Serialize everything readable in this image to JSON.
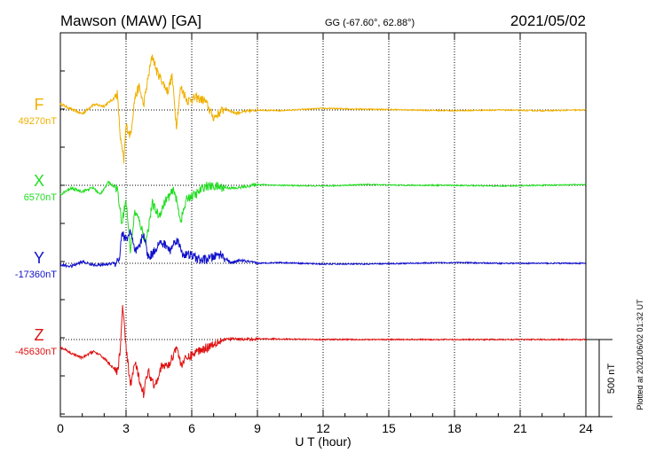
{
  "header": {
    "station": "Mawson (MAW)  [GA]",
    "coords": "GG (-67.60°,  62.88°)",
    "date": "2021/05/02"
  },
  "footer": {
    "plotted": "Plotted at 2021/06/02 01:32 UT"
  },
  "scale_bar": {
    "label": "500 nT",
    "value_nT": 500
  },
  "colors": {
    "F": "#f0b000",
    "X": "#22dd22",
    "Y": "#1010cc",
    "Z": "#e01010",
    "axis": "#000000",
    "grid": "#000000"
  },
  "chart_data": {
    "type": "line",
    "xlabel": "U T (hour)",
    "xlim": [
      0,
      24
    ],
    "xticks": [
      "0",
      "3",
      "6",
      "9",
      "12",
      "15",
      "18",
      "21",
      "24"
    ],
    "grid": "dotted vertical at every 3 h",
    "series": [
      {
        "name": "F",
        "base_label": "49270nT",
        "base_nT": 49270,
        "points": [
          [
            0,
            40
          ],
          [
            0.5,
            5
          ],
          [
            1,
            -25
          ],
          [
            1.5,
            35
          ],
          [
            2,
            25
          ],
          [
            2.4,
            70
          ],
          [
            2.6,
            105
          ],
          [
            2.75,
            -200
          ],
          [
            2.9,
            -330
          ],
          [
            3.0,
            -100
          ],
          [
            3.2,
            -170
          ],
          [
            3.4,
            80
          ],
          [
            3.6,
            150
          ],
          [
            3.8,
            30
          ],
          [
            4.0,
            200
          ],
          [
            4.2,
            355
          ],
          [
            4.4,
            250
          ],
          [
            4.6,
            200
          ],
          [
            4.9,
            120
          ],
          [
            5.1,
            220
          ],
          [
            5.3,
            -100
          ],
          [
            5.5,
            150
          ],
          [
            5.8,
            60
          ],
          [
            6.2,
            80
          ],
          [
            6.6,
            60
          ],
          [
            7.0,
            -50
          ],
          [
            7.5,
            10
          ],
          [
            8.0,
            -20
          ],
          [
            9,
            0
          ],
          [
            10,
            -5
          ],
          [
            12,
            10
          ],
          [
            14,
            5
          ],
          [
            16,
            0
          ],
          [
            18,
            -5
          ],
          [
            20,
            0
          ],
          [
            22,
            -5
          ],
          [
            24,
            0
          ]
        ]
      },
      {
        "name": "X",
        "base_label": "6570nT",
        "base_nT": 6570,
        "points": [
          [
            0,
            -60
          ],
          [
            0.5,
            -20
          ],
          [
            1,
            -40
          ],
          [
            1.5,
            -15
          ],
          [
            1.8,
            -60
          ],
          [
            2.2,
            20
          ],
          [
            2.6,
            -20
          ],
          [
            2.8,
            -240
          ],
          [
            3.0,
            -100
          ],
          [
            3.2,
            -420
          ],
          [
            3.4,
            -170
          ],
          [
            3.6,
            -230
          ],
          [
            3.9,
            -370
          ],
          [
            4.2,
            -120
          ],
          [
            4.5,
            -200
          ],
          [
            4.8,
            -100
          ],
          [
            5.2,
            -30
          ],
          [
            5.5,
            -230
          ],
          [
            5.8,
            -80
          ],
          [
            6.2,
            -60
          ],
          [
            6.6,
            -5
          ],
          [
            7.2,
            -10
          ],
          [
            8,
            -20
          ],
          [
            9,
            5
          ],
          [
            10,
            0
          ],
          [
            12,
            -5
          ],
          [
            14,
            5
          ],
          [
            16,
            0
          ],
          [
            18,
            0
          ],
          [
            20,
            -5
          ],
          [
            22,
            0
          ],
          [
            24,
            5
          ]
        ]
      },
      {
        "name": "Y",
        "base_label": "-17360nT",
        "base_nT": -17360,
        "points": [
          [
            0,
            -10
          ],
          [
            0.5,
            -20
          ],
          [
            1,
            10
          ],
          [
            1.5,
            -10
          ],
          [
            2,
            -10
          ],
          [
            2.5,
            5
          ],
          [
            2.7,
            30
          ],
          [
            2.8,
            200
          ],
          [
            3.0,
            150
          ],
          [
            3.2,
            210
          ],
          [
            3.4,
            70
          ],
          [
            3.6,
            100
          ],
          [
            3.8,
            200
          ],
          [
            4.0,
            40
          ],
          [
            4.2,
            60
          ],
          [
            4.5,
            130
          ],
          [
            4.8,
            120
          ],
          [
            5.0,
            80
          ],
          [
            5.3,
            160
          ],
          [
            5.6,
            60
          ],
          [
            6.0,
            50
          ],
          [
            6.4,
            20
          ],
          [
            6.8,
            30
          ],
          [
            7.3,
            60
          ],
          [
            7.8,
            0
          ],
          [
            8.2,
            20
          ],
          [
            9,
            0
          ],
          [
            10,
            5
          ],
          [
            12,
            -5
          ],
          [
            14,
            -5
          ],
          [
            16,
            0
          ],
          [
            18,
            5
          ],
          [
            20,
            0
          ],
          [
            22,
            0
          ],
          [
            24,
            0
          ]
        ]
      },
      {
        "name": "Z",
        "base_label": "-45630nT",
        "base_nT": -45630,
        "points": [
          [
            0,
            -50
          ],
          [
            0.5,
            -90
          ],
          [
            1,
            -120
          ],
          [
            1.5,
            -75
          ],
          [
            2,
            -120
          ],
          [
            2.4,
            -180
          ],
          [
            2.6,
            -220
          ],
          [
            2.75,
            -40
          ],
          [
            2.85,
            230
          ],
          [
            3.0,
            -60
          ],
          [
            3.2,
            -300
          ],
          [
            3.4,
            -150
          ],
          [
            3.6,
            -250
          ],
          [
            3.8,
            -350
          ],
          [
            4.0,
            -200
          ],
          [
            4.3,
            -300
          ],
          [
            4.6,
            -180
          ],
          [
            5.0,
            -160
          ],
          [
            5.3,
            -40
          ],
          [
            5.5,
            -160
          ],
          [
            5.8,
            -120
          ],
          [
            6.2,
            -80
          ],
          [
            6.7,
            -50
          ],
          [
            7.2,
            -10
          ],
          [
            7.8,
            5
          ],
          [
            8.5,
            0
          ],
          [
            9,
            5
          ],
          [
            12,
            0
          ],
          [
            15,
            0
          ],
          [
            18,
            0
          ],
          [
            21,
            0
          ],
          [
            24,
            0
          ]
        ]
      }
    ]
  }
}
